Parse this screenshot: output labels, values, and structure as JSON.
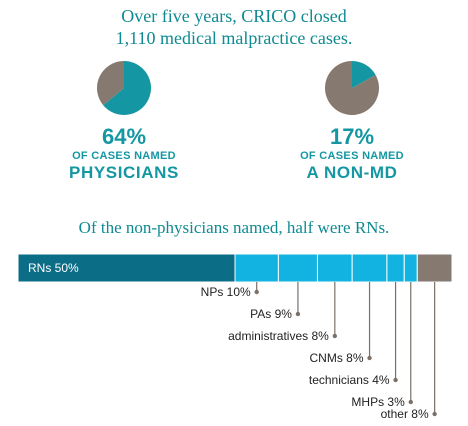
{
  "intro": {
    "line1": "Over five years, CRICO closed",
    "line2": "1,110 medical malpractice cases."
  },
  "stats": [
    {
      "percent_label": "64%",
      "subtitle": "OF CASES NAMED",
      "group": "PHYSICIANS"
    },
    {
      "percent_label": "17%",
      "subtitle": "OF CASES NAMED",
      "group": "A NON-MD"
    }
  ],
  "subhead": "Of the non-physicians named, half were RNs.",
  "colors": {
    "teal_dark": "#0c6d87",
    "cyan": "#12b3e0",
    "brown": "#867a70",
    "text_teal": "#1497a2"
  },
  "chart_data": [
    {
      "type": "pie",
      "values": [
        64,
        36
      ],
      "highlight_index": 0
    },
    {
      "type": "pie",
      "values": [
        17,
        83
      ],
      "highlight_index": 0
    },
    {
      "type": "bar",
      "orientation": "horizontal-stacked",
      "categories": [
        "RNs",
        "NPs",
        "PAs",
        "administratives",
        "CNMs",
        "technicians",
        "MHPs",
        "other"
      ],
      "values": [
        50,
        10,
        9,
        8,
        8,
        4,
        3,
        8
      ],
      "labels": [
        "RNs 50%",
        "NPs 10%",
        "PAs 9%",
        "administratives 8%",
        "CNMs 8%",
        "technicians 4%",
        "MHPs 3%",
        "other 8%"
      ]
    }
  ]
}
